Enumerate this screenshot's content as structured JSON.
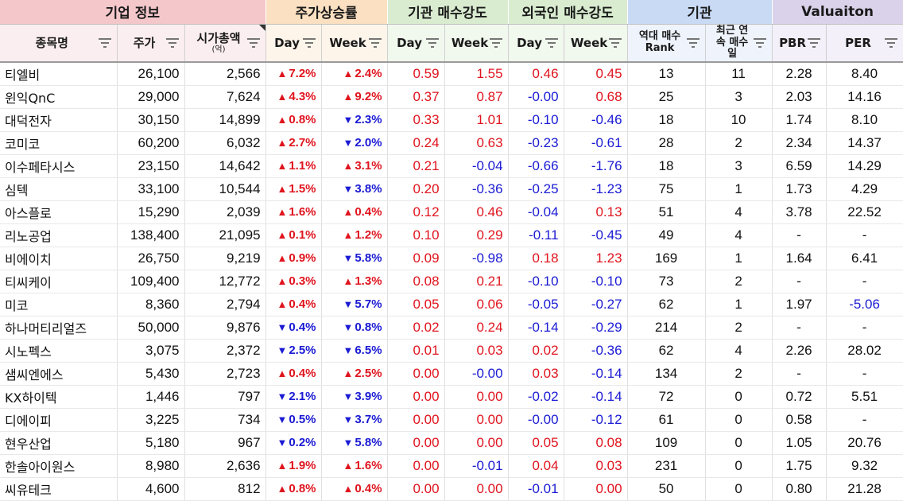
{
  "groups": [
    {
      "label": "기업 정보",
      "span": 3,
      "cls": "g-pink"
    },
    {
      "label": "주가상승률",
      "span": 2,
      "cls": "g-orange"
    },
    {
      "label": "기관 매수강도",
      "span": 2,
      "cls": "g-green"
    },
    {
      "label": "외국인 매수강도",
      "span": 2,
      "cls": "g-green"
    },
    {
      "label": "기관",
      "span": 2,
      "cls": "g-blue"
    },
    {
      "label": "Valuaiton",
      "span": 2,
      "cls": "g-purple"
    }
  ],
  "columns": {
    "name": "종목명",
    "price": "주가",
    "mcap": "시가총액",
    "mcap_unit": "(억)",
    "day1": "Day",
    "week1": "Week",
    "day2": "Day",
    "week2": "Week",
    "day3": "Day",
    "week3": "Week",
    "rank": "역대 매수 Rank",
    "consec": "최근 연속 매수일",
    "pbr": "PBR",
    "per": "PER"
  },
  "colors": {
    "up": "#e0141e",
    "down": "#1a1ad4"
  },
  "rows": [
    {
      "name": "티엘비",
      "price": "26,100",
      "mcap": "2,566",
      "day": "7.2%",
      "day_dir": "up",
      "week": "2.4%",
      "week_dir": "up",
      "inst_day": "0.59",
      "inst_week": "1.55",
      "for_day": "0.46",
      "for_week": "0.45",
      "rank": "13",
      "consec": "11",
      "pbr": "2.28",
      "per": "8.40"
    },
    {
      "name": "윈익QnC",
      "price": "29,000",
      "mcap": "7,624",
      "day": "4.3%",
      "day_dir": "up",
      "week": "9.2%",
      "week_dir": "up",
      "inst_day": "0.37",
      "inst_week": "0.87",
      "for_day": "-0.00",
      "for_week": "0.68",
      "rank": "25",
      "consec": "3",
      "pbr": "2.03",
      "per": "14.16"
    },
    {
      "name": "대덕전자",
      "price": "30,150",
      "mcap": "14,899",
      "day": "0.8%",
      "day_dir": "up",
      "week": "2.3%",
      "week_dir": "down",
      "inst_day": "0.33",
      "inst_week": "1.01",
      "for_day": "-0.10",
      "for_week": "-0.46",
      "rank": "18",
      "consec": "10",
      "pbr": "1.74",
      "per": "8.10"
    },
    {
      "name": "코미코",
      "price": "60,200",
      "mcap": "6,032",
      "day": "2.7%",
      "day_dir": "up",
      "week": "2.0%",
      "week_dir": "down",
      "inst_day": "0.24",
      "inst_week": "0.63",
      "for_day": "-0.23",
      "for_week": "-0.61",
      "rank": "28",
      "consec": "2",
      "pbr": "2.34",
      "per": "14.37"
    },
    {
      "name": "이수페타시스",
      "price": "23,150",
      "mcap": "14,642",
      "day": "1.1%",
      "day_dir": "up",
      "week": "3.1%",
      "week_dir": "up",
      "inst_day": "0.21",
      "inst_week": "-0.04",
      "for_day": "-0.66",
      "for_week": "-1.76",
      "rank": "18",
      "consec": "3",
      "pbr": "6.59",
      "per": "14.29"
    },
    {
      "name": "심텍",
      "price": "33,100",
      "mcap": "10,544",
      "day": "1.5%",
      "day_dir": "up",
      "week": "3.8%",
      "week_dir": "down",
      "inst_day": "0.20",
      "inst_week": "-0.36",
      "for_day": "-0.25",
      "for_week": "-1.23",
      "rank": "75",
      "consec": "1",
      "pbr": "1.73",
      "per": "4.29"
    },
    {
      "name": "아스플로",
      "price": "15,290",
      "mcap": "2,039",
      "day": "1.6%",
      "day_dir": "up",
      "week": "0.4%",
      "week_dir": "up",
      "inst_day": "0.12",
      "inst_week": "0.46",
      "for_day": "-0.04",
      "for_week": "0.13",
      "rank": "51",
      "consec": "4",
      "pbr": "3.78",
      "per": "22.52"
    },
    {
      "name": "리노공업",
      "price": "138,400",
      "mcap": "21,095",
      "day": "0.1%",
      "day_dir": "up",
      "week": "1.2%",
      "week_dir": "up",
      "inst_day": "0.10",
      "inst_week": "0.29",
      "for_day": "-0.11",
      "for_week": "-0.45",
      "rank": "49",
      "consec": "4",
      "pbr": "-",
      "per": "-"
    },
    {
      "name": "비에이치",
      "price": "26,750",
      "mcap": "9,219",
      "day": "0.9%",
      "day_dir": "up",
      "week": "5.8%",
      "week_dir": "down",
      "inst_day": "0.09",
      "inst_week": "-0.98",
      "for_day": "0.18",
      "for_week": "1.23",
      "rank": "169",
      "consec": "1",
      "pbr": "1.64",
      "per": "6.41"
    },
    {
      "name": "티씨케이",
      "price": "109,400",
      "mcap": "12,772",
      "day": "0.3%",
      "day_dir": "up",
      "week": "1.3%",
      "week_dir": "up",
      "inst_day": "0.08",
      "inst_week": "0.21",
      "for_day": "-0.10",
      "for_week": "-0.10",
      "rank": "73",
      "consec": "2",
      "pbr": "-",
      "per": "-"
    },
    {
      "name": "미코",
      "price": "8,360",
      "mcap": "2,794",
      "day": "0.4%",
      "day_dir": "up",
      "week": "5.7%",
      "week_dir": "down",
      "inst_day": "0.05",
      "inst_week": "0.06",
      "for_day": "-0.05",
      "for_week": "-0.27",
      "rank": "62",
      "consec": "1",
      "pbr": "1.97",
      "per": "-5.06"
    },
    {
      "name": "하나머티리얼즈",
      "price": "50,000",
      "mcap": "9,876",
      "day": "0.4%",
      "day_dir": "down",
      "week": "0.8%",
      "week_dir": "down",
      "inst_day": "0.02",
      "inst_week": "0.24",
      "for_day": "-0.14",
      "for_week": "-0.29",
      "rank": "214",
      "consec": "2",
      "pbr": "-",
      "per": "-"
    },
    {
      "name": "시노펙스",
      "price": "3,075",
      "mcap": "2,372",
      "day": "2.5%",
      "day_dir": "down",
      "week": "6.5%",
      "week_dir": "down",
      "inst_day": "0.01",
      "inst_week": "0.03",
      "for_day": "0.02",
      "for_week": "-0.36",
      "rank": "62",
      "consec": "4",
      "pbr": "2.26",
      "per": "28.02"
    },
    {
      "name": "샘씨엔에스",
      "price": "5,430",
      "mcap": "2,723",
      "day": "0.4%",
      "day_dir": "up",
      "week": "2.5%",
      "week_dir": "up",
      "inst_day": "0.00",
      "inst_week": "-0.00",
      "for_day": "0.03",
      "for_week": "-0.14",
      "rank": "134",
      "consec": "2",
      "pbr": "-",
      "per": "-"
    },
    {
      "name": "KX하이텍",
      "price": "1,446",
      "mcap": "797",
      "day": "2.1%",
      "day_dir": "down",
      "week": "3.9%",
      "week_dir": "down",
      "inst_day": "0.00",
      "inst_week": "0.00",
      "for_day": "-0.02",
      "for_week": "-0.14",
      "rank": "72",
      "consec": "0",
      "pbr": "0.72",
      "per": "5.51"
    },
    {
      "name": "디에이피",
      "price": "3,225",
      "mcap": "734",
      "day": "0.5%",
      "day_dir": "down",
      "week": "3.7%",
      "week_dir": "down",
      "inst_day": "0.00",
      "inst_week": "0.00",
      "for_day": "-0.00",
      "for_week": "-0.12",
      "rank": "61",
      "consec": "0",
      "pbr": "0.58",
      "per": "-"
    },
    {
      "name": "현우산업",
      "price": "5,180",
      "mcap": "967",
      "day": "0.2%",
      "day_dir": "down",
      "week": "5.8%",
      "week_dir": "down",
      "inst_day": "0.00",
      "inst_week": "0.00",
      "for_day": "0.05",
      "for_week": "0.08",
      "rank": "109",
      "consec": "0",
      "pbr": "1.05",
      "per": "20.76"
    },
    {
      "name": "한솔아이원스",
      "price": "8,980",
      "mcap": "2,636",
      "day": "1.9%",
      "day_dir": "up",
      "week": "1.6%",
      "week_dir": "up",
      "inst_day": "0.00",
      "inst_week": "-0.01",
      "for_day": "0.04",
      "for_week": "0.03",
      "rank": "231",
      "consec": "0",
      "pbr": "1.75",
      "per": "9.32"
    },
    {
      "name": "씨유테크",
      "price": "4,600",
      "mcap": "812",
      "day": "0.8%",
      "day_dir": "up",
      "week": "0.4%",
      "week_dir": "up",
      "inst_day": "0.00",
      "inst_week": "0.00",
      "for_day": "-0.01",
      "for_week": "0.00",
      "rank": "50",
      "consec": "0",
      "pbr": "0.80",
      "per": "21.28"
    }
  ]
}
